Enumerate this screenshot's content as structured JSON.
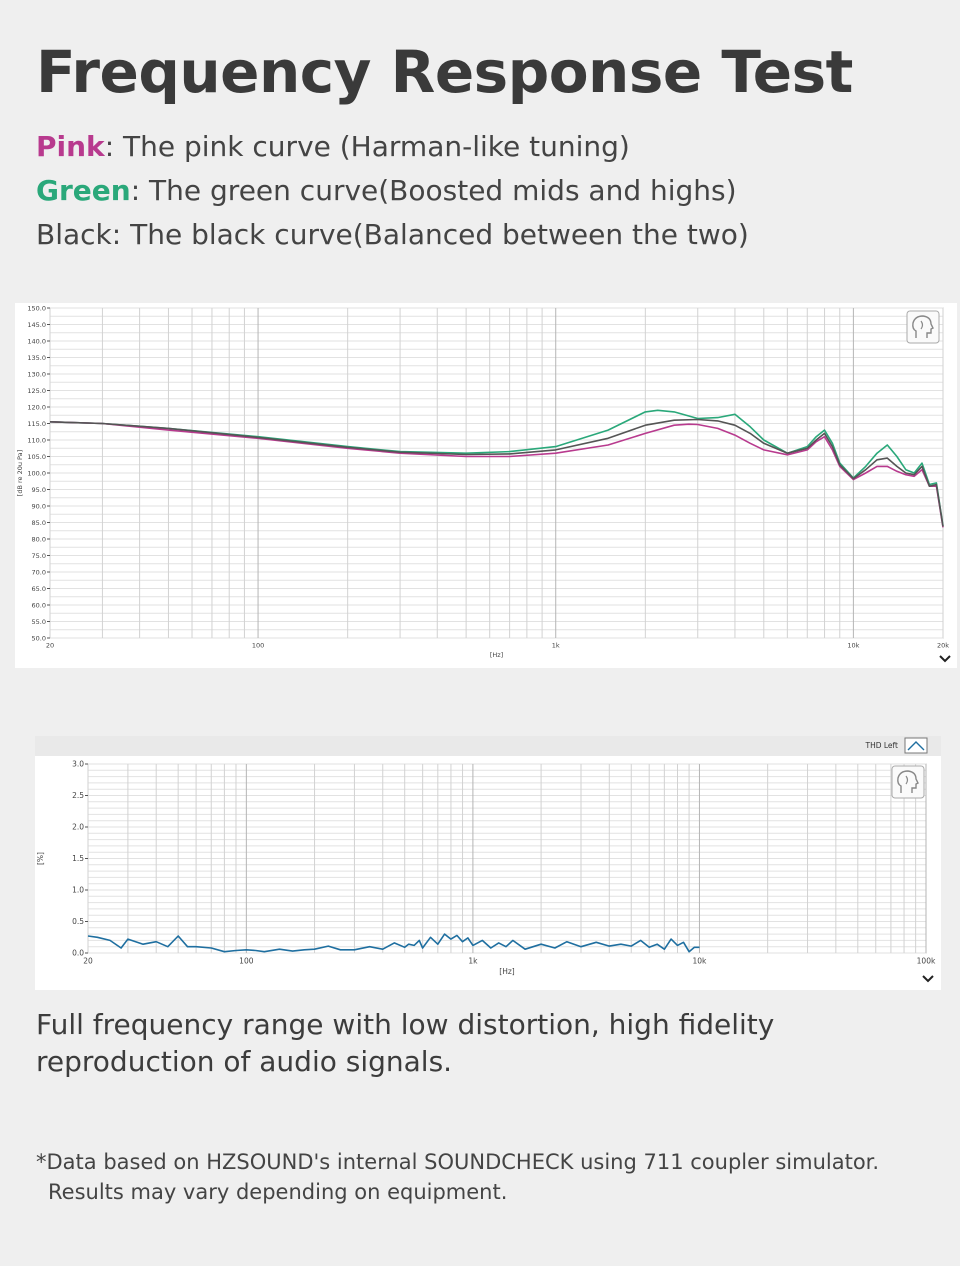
{
  "heading": "Frequency Response Test",
  "legend": [
    {
      "key": "Pink",
      "text": ": The pink curve (Harman-like tuning)",
      "color": "#b83a8e"
    },
    {
      "key": "Green",
      "text": ": The green curve(Boosted mids and highs)",
      "color": "#2aa87a"
    },
    {
      "key": "Black",
      "text": ": The black curve(Balanced between the two)",
      "color": "#444444"
    }
  ],
  "caption": "Full frequency range with low distortion, high fidelity reproduction of audio signals.",
  "note": {
    "line1": "*Data based on HZSOUND's internal SOUNDCHECK using 711 coupler simulator.",
    "line2": "Results may vary depending on equipment."
  },
  "icons": {
    "head": "head-profile-icon",
    "chevron": "chevron-down-icon",
    "thd_legend": "thd-legend-swatch-icon"
  },
  "chart_data": [
    {
      "type": "line",
      "xscale": "log",
      "xlabel": "[Hz]",
      "ylabel": "[dB re 20u Pa]",
      "xlim": [
        20,
        20000
      ],
      "ylim": [
        50,
        150
      ],
      "x_ticks": [
        20,
        100,
        1000,
        10000,
        20000
      ],
      "x_tick_labels": [
        "20",
        "100",
        "1k",
        "10k",
        "20k"
      ],
      "y_ticks": [
        50,
        55,
        60,
        65,
        70,
        75,
        80,
        85,
        90,
        95,
        100,
        105,
        110,
        115,
        120,
        125,
        130,
        135,
        140,
        145,
        150
      ],
      "y_tick_labels": [
        "50.0",
        "55.0",
        "60.0",
        "65.0",
        "70.0",
        "75.0",
        "80.0",
        "85.0",
        "90.0",
        "95.0",
        "100.0",
        "105.0",
        "110.0",
        "115.0",
        "120.0",
        "125.0",
        "130.0",
        "135.0",
        "140.0",
        "145.0",
        "150.0"
      ],
      "grid": true,
      "series": [
        {
          "color": "#2aa87a",
          "x": [
            20,
            30,
            50,
            100,
            200,
            300,
            500,
            700,
            1000,
            1500,
            2000,
            2200,
            2500,
            3000,
            3500,
            4000,
            4500,
            5000,
            6000,
            7000,
            7500,
            8000,
            8500,
            9000,
            10000,
            11000,
            12000,
            13000,
            14000,
            15000,
            16000,
            17000,
            18000,
            19000,
            20000
          ],
          "y": [
            115.5,
            115,
            113.5,
            111,
            108,
            106.5,
            106,
            106.5,
            108,
            113,
            118.5,
            119,
            118.5,
            116.5,
            116.8,
            117.8,
            114,
            110,
            106,
            108,
            111,
            113,
            109,
            103,
            98.5,
            102,
            106,
            108.5,
            105,
            101,
            100,
            103,
            96.5,
            97,
            84
          ]
        },
        {
          "color": "#b83a8e",
          "x": [
            20,
            30,
            50,
            100,
            200,
            300,
            500,
            700,
            1000,
            1500,
            2000,
            2500,
            2800,
            3000,
            3500,
            4000,
            4500,
            5000,
            6000,
            7000,
            7500,
            8000,
            8500,
            9000,
            10000,
            11000,
            12000,
            13000,
            14000,
            15000,
            16000,
            17000,
            18000,
            19000,
            20000
          ],
          "y": [
            115.5,
            115,
            113,
            110.5,
            107.5,
            106,
            105,
            105,
            106,
            108.5,
            112,
            114.5,
            114.8,
            114.7,
            113.5,
            111.5,
            109,
            107,
            105.5,
            107,
            109.5,
            111,
            107,
            102,
            98,
            100,
            102,
            102,
            100.5,
            99.5,
            99,
            101,
            96,
            96,
            83.5
          ]
        },
        {
          "color": "#555555",
          "x": [
            20,
            30,
            50,
            100,
            200,
            300,
            500,
            700,
            1000,
            1500,
            2000,
            2500,
            3000,
            3500,
            4000,
            4500,
            5000,
            6000,
            7000,
            7500,
            8000,
            8500,
            9000,
            10000,
            11000,
            12000,
            13000,
            14000,
            15000,
            16000,
            17000,
            18000,
            19000,
            20000
          ],
          "y": [
            115.5,
            115,
            113.5,
            110.8,
            107.8,
            106.3,
            105.6,
            105.8,
            107,
            110.5,
            114.5,
            116,
            116.2,
            115.8,
            114.5,
            112,
            109,
            106,
            107.5,
            110,
            112,
            108,
            102.5,
            98.3,
            101,
            104,
            104.5,
            102,
            100,
            99.5,
            102,
            96,
            96.5,
            83.8
          ]
        }
      ]
    },
    {
      "type": "line",
      "xscale": "log",
      "xlabel": "[Hz]",
      "ylabel": "[%]",
      "xlim": [
        20,
        100000
      ],
      "ylim": [
        0,
        3
      ],
      "x_ticks": [
        20,
        100,
        1000,
        10000,
        100000
      ],
      "x_tick_labels": [
        "20",
        "100",
        "1k",
        "10k",
        "100k"
      ],
      "y_ticks": [
        0,
        0.5,
        1,
        1.5,
        2,
        2.5,
        3
      ],
      "y_tick_labels": [
        "0.0",
        "0.5",
        "1.0",
        "1.5",
        "2.0",
        "2.5",
        "3.0"
      ],
      "grid": true,
      "legend": "THD Left",
      "legend_position": "top-right",
      "series": [
        {
          "name": "THD Left",
          "color": "#1f6fa0",
          "x": [
            20,
            22,
            25,
            28,
            30,
            35,
            40,
            45,
            50,
            55,
            60,
            70,
            80,
            90,
            100,
            110,
            120,
            140,
            160,
            180,
            200,
            230,
            260,
            300,
            350,
            400,
            450,
            500,
            520,
            550,
            580,
            600,
            650,
            700,
            750,
            800,
            850,
            900,
            950,
            1000,
            1100,
            1200,
            1300,
            1400,
            1500,
            1700,
            2000,
            2300,
            2600,
            3000,
            3500,
            4000,
            4500,
            5000,
            5500,
            6000,
            6500,
            7000,
            7500,
            8000,
            8500,
            9000,
            9500,
            10000
          ],
          "y": [
            0.27,
            0.25,
            0.2,
            0.08,
            0.22,
            0.14,
            0.18,
            0.1,
            0.27,
            0.1,
            0.1,
            0.08,
            0.02,
            0.04,
            0.05,
            0.04,
            0.02,
            0.06,
            0.03,
            0.05,
            0.06,
            0.11,
            0.05,
            0.05,
            0.1,
            0.06,
            0.16,
            0.09,
            0.14,
            0.12,
            0.2,
            0.08,
            0.25,
            0.14,
            0.3,
            0.22,
            0.28,
            0.18,
            0.24,
            0.12,
            0.2,
            0.08,
            0.16,
            0.1,
            0.2,
            0.06,
            0.14,
            0.08,
            0.18,
            0.1,
            0.17,
            0.11,
            0.14,
            0.11,
            0.2,
            0.09,
            0.14,
            0.06,
            0.22,
            0.12,
            0.17,
            0.02,
            0.09,
            0.09
          ]
        }
      ]
    }
  ]
}
